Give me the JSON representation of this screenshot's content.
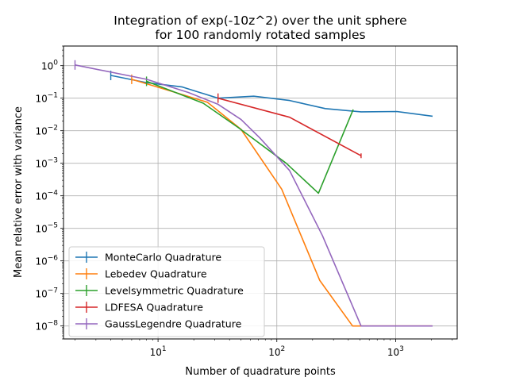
{
  "chart_data": {
    "type": "line",
    "title_line1": "Integration of exp(-10z^2) over the unit sphere",
    "title_line2": "for 100 randomly rotated samples",
    "xlabel": "Number of quadrature points",
    "ylabel": "Mean relative error with variance",
    "xscale": "log",
    "yscale": "log",
    "xlim": [
      1.6,
      3300
    ],
    "ylim": [
      4e-09,
      4
    ],
    "grid": true,
    "legend_position": "lower-left",
    "x_ticks": [
      {
        "value": 10,
        "base": "10",
        "exp": "1"
      },
      {
        "value": 100,
        "base": "10",
        "exp": "2"
      },
      {
        "value": 1000,
        "base": "10",
        "exp": "3"
      }
    ],
    "y_ticks": [
      {
        "value": 1,
        "base": "10",
        "exp": "0"
      },
      {
        "value": 0.1,
        "base": "10",
        "exp": "−1"
      },
      {
        "value": 0.01,
        "base": "10",
        "exp": "−2"
      },
      {
        "value": 0.001,
        "base": "10",
        "exp": "−3"
      },
      {
        "value": 0.0001,
        "base": "10",
        "exp": "−4"
      },
      {
        "value": 1e-05,
        "base": "10",
        "exp": "−5"
      },
      {
        "value": 1e-06,
        "base": "10",
        "exp": "−6"
      },
      {
        "value": 1e-07,
        "base": "10",
        "exp": "−7"
      },
      {
        "value": 1e-08,
        "base": "10",
        "exp": "−8"
      }
    ],
    "series": [
      {
        "name": "MonteCarlo Quadrature",
        "color": "#1f77b4",
        "x": [
          4,
          8,
          16,
          32,
          64,
          128,
          256,
          512,
          1024,
          2048
        ],
        "y": [
          0.5,
          0.3,
          0.22,
          0.1,
          0.115,
          0.085,
          0.048,
          0.038,
          0.039,
          0.028
        ]
      },
      {
        "name": "Lebedev Quadrature",
        "color": "#ff7f0e",
        "x": [
          6,
          14,
          26,
          50,
          110,
          230,
          434,
          590,
          2030
        ],
        "y": [
          0.38,
          0.15,
          0.075,
          0.011,
          0.00016,
          2.5e-07,
          1e-08,
          1e-08,
          1e-08
        ]
      },
      {
        "name": "Levelsymmetric Quadrature",
        "color": "#2ca02c",
        "x": [
          8,
          24,
          48,
          120,
          224,
          440
        ],
        "y": [
          0.33,
          0.07,
          0.012,
          0.001,
          0.00012,
          0.045
        ]
      },
      {
        "name": "LDFESA Quadrature",
        "color": "#d62728",
        "x": [
          32,
          128,
          512
        ],
        "y": [
          0.1,
          0.026,
          0.0017
        ]
      },
      {
        "name": "GaussLegendre Quadrature",
        "color": "#9467bd",
        "x": [
          2,
          8,
          18,
          32,
          50,
          72,
          128,
          242,
          512,
          2048
        ],
        "y": [
          1.05,
          0.38,
          0.15,
          0.065,
          0.022,
          0.006,
          0.0006,
          6e-06,
          1e-08,
          1e-08
        ]
      }
    ]
  }
}
